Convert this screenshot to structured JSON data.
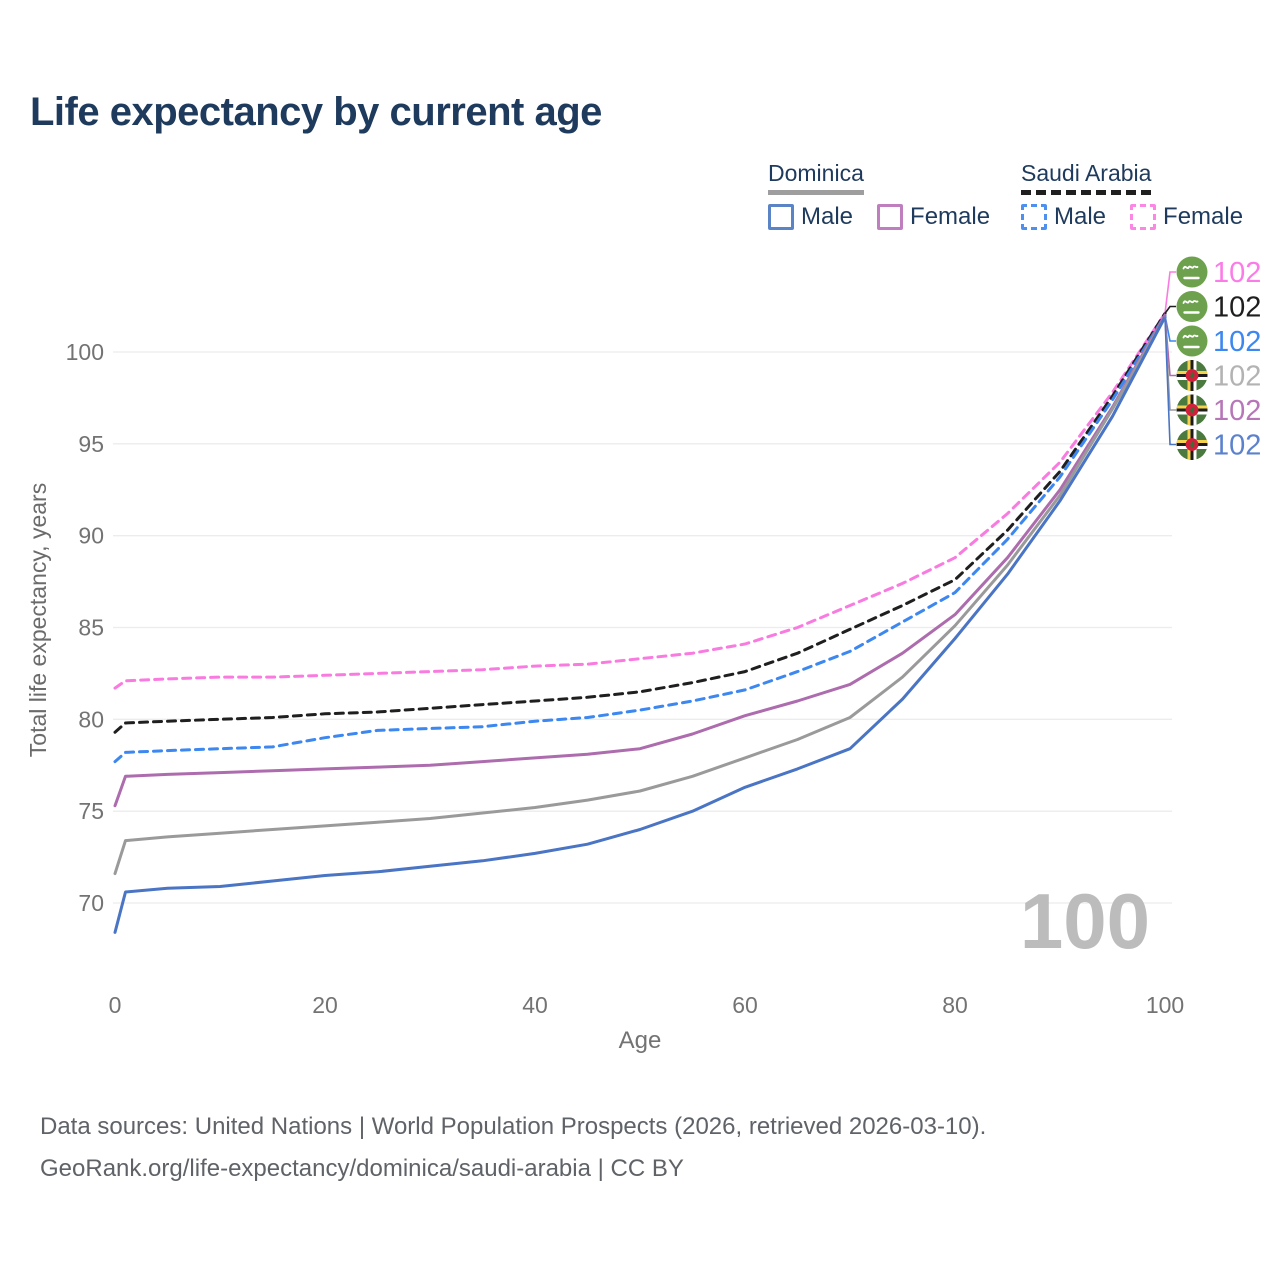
{
  "title": "Life expectancy by current age",
  "legend": {
    "groups": [
      {
        "name": "Dominica",
        "line_style": "solid",
        "underline_color": "#9e9e9e",
        "entries": [
          {
            "label": "Male",
            "color": "#5b84c6"
          },
          {
            "label": "Female",
            "color": "#bf7fbf"
          }
        ]
      },
      {
        "name": "Saudi Arabia",
        "line_style": "dashed",
        "underline_color": "#1f1f1f",
        "entries": [
          {
            "label": "Male",
            "color": "#4d90f0"
          },
          {
            "label": "Female",
            "color": "#fb86e4"
          }
        ]
      }
    ]
  },
  "watermark_age": "100",
  "footer": {
    "line1": "Data sources: United Nations | World Population Prospects (2026, retrieved 2026-03-10).",
    "line2": "GeoRank.org/life-expectancy/dominica/saudi-arabia | CC BY"
  },
  "chart_data": {
    "type": "line",
    "title": "Life expectancy by current age",
    "xlabel": "Age",
    "ylabel": "Total life expectancy, years",
    "xlim": [
      0,
      100
    ],
    "ylim": [
      68,
      103
    ],
    "xticks": [
      0,
      20,
      40,
      60,
      80,
      100
    ],
    "yticks": [
      70,
      75,
      80,
      85,
      90,
      95,
      100
    ],
    "grid": "horizontal",
    "legend_position": "top-right",
    "x": [
      0,
      1,
      5,
      10,
      15,
      20,
      25,
      30,
      35,
      40,
      45,
      50,
      55,
      60,
      65,
      70,
      75,
      80,
      85,
      90,
      95,
      100
    ],
    "series": [
      {
        "name": "Saudi Arabia — Female",
        "country": "Saudi Arabia",
        "sex": "Female",
        "color": "#f97be0",
        "dashed": true,
        "end_label": "102",
        "values": [
          81.7,
          82.1,
          82.2,
          82.3,
          82.3,
          82.4,
          82.5,
          82.6,
          82.7,
          82.9,
          83.0,
          83.3,
          83.6,
          84.1,
          85.0,
          86.2,
          87.4,
          88.8,
          91.2,
          94.0,
          97.8,
          102.1
        ]
      },
      {
        "name": "Saudi Arabia — Both sexes",
        "country": "Saudi Arabia",
        "sex": "Both sexes",
        "color": "#1f1f1f",
        "dashed": true,
        "end_label": "102",
        "values": [
          79.3,
          79.8,
          79.9,
          80.0,
          80.1,
          80.3,
          80.4,
          80.6,
          80.8,
          81.0,
          81.2,
          81.5,
          82.0,
          82.6,
          83.6,
          84.9,
          86.2,
          87.6,
          90.3,
          93.5,
          97.6,
          102.1
        ]
      },
      {
        "name": "Saudi Arabia — Male",
        "country": "Saudi Arabia",
        "sex": "Male",
        "color": "#3c87f0",
        "dashed": true,
        "end_label": "102",
        "values": [
          77.7,
          78.2,
          78.3,
          78.4,
          78.5,
          79.0,
          79.4,
          79.5,
          79.6,
          79.9,
          80.1,
          80.5,
          81.0,
          81.6,
          82.6,
          83.7,
          85.3,
          86.9,
          89.8,
          93.2,
          97.4,
          102.0
        ]
      },
      {
        "name": "Dominica — Female",
        "country": "Dominica",
        "sex": "Female",
        "color": "#ad6cad",
        "dashed": false,
        "end_label": "102",
        "values": [
          75.3,
          76.9,
          77.0,
          77.1,
          77.2,
          77.3,
          77.4,
          77.5,
          77.7,
          77.9,
          78.1,
          78.4,
          79.2,
          80.2,
          81.0,
          81.9,
          83.6,
          85.7,
          88.8,
          92.5,
          97.0,
          102.0
        ]
      },
      {
        "name": "Dominica — Both sexes",
        "country": "Dominica",
        "sex": "Both sexes",
        "color": "#9a9a9a",
        "dashed": false,
        "end_label": "102",
        "values": [
          71.6,
          73.4,
          73.6,
          73.8,
          74.0,
          74.2,
          74.4,
          74.6,
          74.9,
          75.2,
          75.6,
          76.1,
          76.9,
          77.9,
          78.9,
          80.1,
          82.3,
          85.1,
          88.4,
          92.2,
          96.9,
          101.9
        ]
      },
      {
        "name": "Dominica — Male",
        "country": "Dominica",
        "sex": "Male",
        "color": "#4a74c4",
        "dashed": false,
        "end_label": "102",
        "values": [
          68.4,
          70.6,
          70.8,
          70.9,
          71.2,
          71.5,
          71.7,
          72.0,
          72.3,
          72.7,
          73.2,
          74.0,
          75.0,
          76.3,
          77.3,
          78.4,
          81.1,
          84.4,
          87.9,
          91.9,
          96.5,
          101.9
        ]
      }
    ],
    "end_labels": [
      {
        "flag": "saudi-arabia",
        "value": "102",
        "color": "#fb7ce8"
      },
      {
        "flag": "saudi-arabia",
        "value": "102",
        "color": "#1f1f1f"
      },
      {
        "flag": "saudi-arabia",
        "value": "102",
        "color": "#3c87f0"
      },
      {
        "flag": "dominica",
        "value": "102",
        "color": "#b3b3b3"
      },
      {
        "flag": "dominica",
        "value": "102",
        "color": "#b776b7"
      },
      {
        "flag": "dominica",
        "value": "102",
        "color": "#5c82cd"
      }
    ]
  }
}
